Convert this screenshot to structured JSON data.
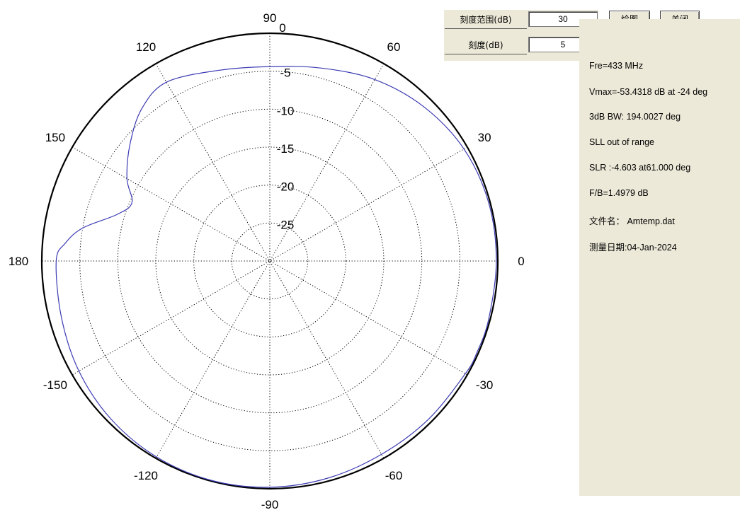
{
  "controls": {
    "scale_range_label": "刻度范围(dB)",
    "scale_range_value": "30",
    "tick_label": "刻度(dB)",
    "tick_value": "5",
    "plot_button": "绘图",
    "close_button": "关闭"
  },
  "info": {
    "freq": "Fre=433 MHz",
    "vmax": "Vmax=-53.4318 dB at -24 deg",
    "bw": "3dB BW: 194.0027 deg",
    "sll": "SLL  out of range",
    "slr": "SLR :-4.603  at61.000 deg",
    "fb": "F/B=1.4979 dB",
    "filename": "文件名： Amtemp.dat",
    "date": "测量日期:04-Jan-2024"
  },
  "chart_data": {
    "type": "polar",
    "angle_labels": [
      {
        "angle": 0,
        "text": "0"
      },
      {
        "angle": 30,
        "text": "30"
      },
      {
        "angle": 60,
        "text": "60"
      },
      {
        "angle": 90,
        "text": "90"
      },
      {
        "angle": 120,
        "text": "120"
      },
      {
        "angle": 150,
        "text": "150"
      },
      {
        "angle": 180,
        "text": "180"
      },
      {
        "angle": -150,
        "text": "-150"
      },
      {
        "angle": -120,
        "text": "-120"
      },
      {
        "angle": -90,
        "text": "-90"
      },
      {
        "angle": -60,
        "text": "-60"
      },
      {
        "angle": -30,
        "text": "-30"
      }
    ],
    "radial_range_db": [
      -30,
      0
    ],
    "radial_ticks": [
      {
        "value": 0,
        "text": "0"
      },
      {
        "value": -5,
        "text": "-5"
      },
      {
        "value": -10,
        "text": "-10"
      },
      {
        "value": -15,
        "text": "-15"
      },
      {
        "value": -20,
        "text": "-20"
      },
      {
        "value": -25,
        "text": "-25"
      }
    ],
    "grid": true,
    "series": [
      {
        "color": "#3b3bb3",
        "points": [
          {
            "angle": -180,
            "db": -1.9
          },
          {
            "angle": -165,
            "db": -1.6
          },
          {
            "angle": -150,
            "db": -1.0
          },
          {
            "angle": -135,
            "db": -0.5
          },
          {
            "angle": -120,
            "db": -0.2
          },
          {
            "angle": -105,
            "db": -0.1
          },
          {
            "angle": -90,
            "db": -0.2
          },
          {
            "angle": -75,
            "db": -0.4
          },
          {
            "angle": -60,
            "db": -0.6
          },
          {
            "angle": -45,
            "db": -0.5
          },
          {
            "angle": -30,
            "db": -0.3
          },
          {
            "angle": -24,
            "db": -0.2
          },
          {
            "angle": -15,
            "db": -0.2
          },
          {
            "angle": 0,
            "db": -0.2
          },
          {
            "angle": 15,
            "db": -0.2
          },
          {
            "angle": 30,
            "db": -0.5
          },
          {
            "angle": 45,
            "db": -1.3
          },
          {
            "angle": 60,
            "db": -2.4
          },
          {
            "angle": 75,
            "db": -3.7
          },
          {
            "angle": 90,
            "db": -4.4
          },
          {
            "angle": 105,
            "db": -4.0
          },
          {
            "angle": 120,
            "db": -2.8
          },
          {
            "angle": 130,
            "db": -3.8
          },
          {
            "angle": 140,
            "db": -6.0
          },
          {
            "angle": 150,
            "db": -8.3
          },
          {
            "angle": 157,
            "db": -10.3
          },
          {
            "angle": 163,
            "db": -9.0
          },
          {
            "angle": 170,
            "db": -5.0
          },
          {
            "angle": 175,
            "db": -3.0
          },
          {
            "angle": 180,
            "db": -1.9
          }
        ]
      }
    ]
  }
}
